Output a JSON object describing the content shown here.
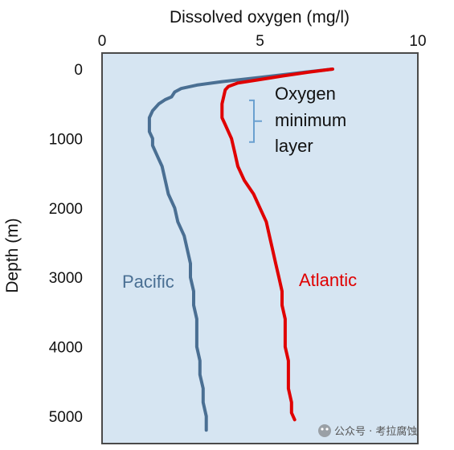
{
  "chart_data": {
    "type": "line",
    "title": "",
    "xlabel": "Dissolved oxygen (mg/l)",
    "ylabel": "Depth (m)",
    "xlim": [
      0,
      10
    ],
    "ylim": [
      0,
      5200
    ],
    "x_axis_position": "top",
    "y_axis_inverted": true,
    "grid": false,
    "background_color": "#d6e5f2",
    "x_ticks": [
      "0",
      "5",
      "10"
    ],
    "y_ticks": [
      "0",
      "1000",
      "2000",
      "3000",
      "4000",
      "5000"
    ],
    "series": [
      {
        "name": "Pacific",
        "color": "#4a6f93",
        "points": [
          [
            7.3,
            0
          ],
          [
            6.5,
            40
          ],
          [
            5.0,
            120
          ],
          [
            3.8,
            180
          ],
          [
            3.0,
            230
          ],
          [
            2.5,
            280
          ],
          [
            2.3,
            330
          ],
          [
            2.2,
            400
          ],
          [
            2.0,
            440
          ],
          [
            1.8,
            500
          ],
          [
            1.6,
            600
          ],
          [
            1.5,
            700
          ],
          [
            1.5,
            800
          ],
          [
            1.5,
            900
          ],
          [
            1.6,
            1000
          ],
          [
            1.6,
            1100
          ],
          [
            1.7,
            1200
          ],
          [
            1.8,
            1300
          ],
          [
            1.9,
            1400
          ],
          [
            2.0,
            1600
          ],
          [
            2.1,
            1800
          ],
          [
            2.3,
            2000
          ],
          [
            2.4,
            2200
          ],
          [
            2.6,
            2400
          ],
          [
            2.7,
            2600
          ],
          [
            2.8,
            2800
          ],
          [
            2.8,
            3000
          ],
          [
            2.9,
            3200
          ],
          [
            2.9,
            3400
          ],
          [
            3.0,
            3600
          ],
          [
            3.0,
            3800
          ],
          [
            3.0,
            4000
          ],
          [
            3.1,
            4200
          ],
          [
            3.1,
            4400
          ],
          [
            3.2,
            4600
          ],
          [
            3.2,
            4800
          ],
          [
            3.3,
            5000
          ],
          [
            3.3,
            5200
          ]
        ]
      },
      {
        "name": "Atlantic",
        "color": "#e00000",
        "points": [
          [
            7.3,
            0
          ],
          [
            6.6,
            40
          ],
          [
            5.7,
            100
          ],
          [
            5.0,
            150
          ],
          [
            4.3,
            200
          ],
          [
            4.0,
            250
          ],
          [
            3.9,
            300
          ],
          [
            3.85,
            400
          ],
          [
            3.8,
            500
          ],
          [
            3.8,
            600
          ],
          [
            3.8,
            700
          ],
          [
            3.9,
            800
          ],
          [
            4.0,
            900
          ],
          [
            4.1,
            1000
          ],
          [
            4.2,
            1200
          ],
          [
            4.3,
            1400
          ],
          [
            4.5,
            1600
          ],
          [
            4.8,
            1800
          ],
          [
            5.0,
            2000
          ],
          [
            5.2,
            2200
          ],
          [
            5.3,
            2400
          ],
          [
            5.4,
            2600
          ],
          [
            5.5,
            2800
          ],
          [
            5.6,
            3000
          ],
          [
            5.7,
            3200
          ],
          [
            5.7,
            3400
          ],
          [
            5.8,
            3600
          ],
          [
            5.8,
            3800
          ],
          [
            5.8,
            4000
          ],
          [
            5.9,
            4200
          ],
          [
            5.9,
            4400
          ],
          [
            5.9,
            4600
          ],
          [
            6.0,
            4800
          ],
          [
            6.0,
            4950
          ],
          [
            6.1,
            5050
          ]
        ]
      }
    ],
    "annotations": {
      "omz_label": [
        "Oxygen",
        "minimum",
        "layer"
      ],
      "omz_bracket_range": [
        450,
        1050
      ],
      "bracket_color": "#6aa0d0"
    }
  },
  "watermark": "公众号 · 考拉腐蚀"
}
